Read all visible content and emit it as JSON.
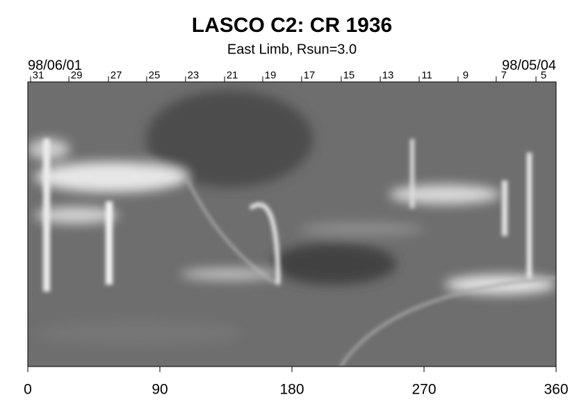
{
  "chart_data": {
    "type": "image",
    "title": "LASCO C2: CR 1936",
    "subtitle": "East Limb, Rsun=3.0",
    "start_label": "98/06/01",
    "end_label": "98/05/04",
    "xlim": [
      0,
      360
    ],
    "xticks": [
      0,
      90,
      180,
      270,
      360
    ],
    "x2lim": [
      0,
      360
    ],
    "x2ticks": [
      {
        "value": 7.1,
        "label": "31"
      },
      {
        "value": 33.2,
        "label": "29"
      },
      {
        "value": 60.2,
        "label": "27"
      },
      {
        "value": 86.2,
        "label": "25"
      },
      {
        "value": 112.7,
        "label": "23"
      },
      {
        "value": 139.3,
        "label": "21"
      },
      {
        "value": 165.3,
        "label": "19"
      },
      {
        "value": 191.8,
        "label": "17"
      },
      {
        "value": 218.8,
        "label": "15"
      },
      {
        "value": 245.4,
        "label": "13"
      },
      {
        "value": 271.9,
        "label": "11"
      },
      {
        "value": 298.4,
        "label": "9"
      },
      {
        "value": 324.4,
        "label": "7"
      },
      {
        "value": 351.5,
        "label": "5"
      }
    ]
  }
}
